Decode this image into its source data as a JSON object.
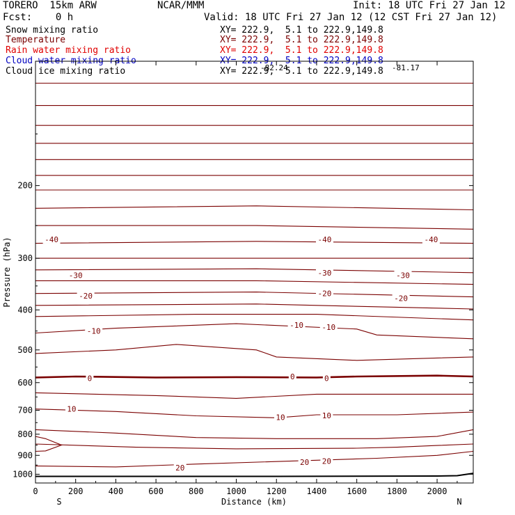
{
  "header": {
    "title": "TORERO  15km ARW",
    "center": "NCAR/MMM",
    "init": "Init: 18 UTC Fri 27 Jan 12",
    "fcst": "Fcst:    0 h",
    "valid": "Valid: 18 UTC Fri 27 Jan 12 (12 CST Fri 27 Jan 12)"
  },
  "fields": [
    {
      "name": "Snow mixing ratio",
      "xy": "XY= 222.9,  5.1 to 222.9,149.8",
      "color": "#000000"
    },
    {
      "name": "Temperature",
      "xy": "XY= 222.9,  5.1 to 222.9,149.8",
      "color": "#7a0000"
    },
    {
      "name": "Rain water mixing ratio",
      "xy": "XY= 222.9,  5.1 to 222.9,149.8",
      "color": "#e00000"
    },
    {
      "name": "Cloud water mixing ratio",
      "xy": "XY= 222.9,  5.1 to 222.9,149.8",
      "color": "#0000c0"
    },
    {
      "name": "Cloud ice mixing ratio",
      "xy": "XY= 222.9,  5.1 to 222.9,149.8",
      "color": "#000000"
    }
  ],
  "overlays": {
    "top_label_left": "-82.24",
    "top_label_right": "-81.17"
  },
  "chart_data": {
    "type": "line",
    "xlabel": "Distance (km)",
    "ylabel": "Pressure (hPa)",
    "xlim": [
      0,
      2180
    ],
    "ylim_hpa": [
      1050,
      100
    ],
    "y_scale": "log",
    "x_ticks": [
      0,
      200,
      400,
      600,
      800,
      1000,
      1200,
      1400,
      1600,
      1800,
      2000
    ],
    "y_ticks": [
      200,
      300,
      400,
      500,
      600,
      700,
      800,
      900,
      1000
    ],
    "x_end_labels": {
      "left": "S",
      "right": "N"
    },
    "contour_color": "#7a0000",
    "terrain_color": "#000000",
    "series": [
      {
        "x": [
          0,
          2180
        ],
        "y": [
          113,
          113
        ]
      },
      {
        "x": [
          0,
          2180
        ],
        "y": [
          128,
          128
        ]
      },
      {
        "x": [
          0,
          2180
        ],
        "y": [
          143,
          143
        ]
      },
      {
        "x": [
          0,
          2180
        ],
        "y": [
          158,
          158
        ]
      },
      {
        "x": [
          0,
          2180
        ],
        "y": [
          173,
          173
        ]
      },
      {
        "x": [
          0,
          2180
        ],
        "y": [
          189,
          189
        ]
      },
      {
        "x": [
          0,
          2180
        ],
        "y": [
          205,
          205
        ]
      },
      {
        "x": [
          0,
          1100,
          2180
        ],
        "y": [
          227,
          224,
          229
        ]
      },
      {
        "x": [
          0,
          1100,
          2180
        ],
        "y": [
          250,
          250,
          255
        ]
      },
      {
        "x": [
          0,
          1100,
          2180
        ],
        "y": [
          276,
          273,
          276
        ]
      },
      {
        "x": [
          0,
          2180
        ],
        "y": [
          300,
          300
        ]
      },
      {
        "x": [
          0,
          1100,
          2180
        ],
        "y": [
          320,
          318,
          325
        ]
      },
      {
        "x": [
          0,
          1100,
          2180
        ],
        "y": [
          340,
          340,
          347
        ]
      },
      {
        "x": [
          0,
          1100,
          2180
        ],
        "y": [
          365,
          362,
          372
        ]
      },
      {
        "x": [
          0,
          1100,
          2180
        ],
        "y": [
          390,
          387,
          398
        ]
      },
      {
        "x": [
          0,
          800,
          1400,
          2180
        ],
        "y": [
          415,
          410,
          410,
          423
        ]
      },
      {
        "x": [
          0,
          400,
          1000,
          1600,
          1700,
          2180
        ],
        "y": [
          455,
          443,
          432,
          445,
          460,
          470
        ]
      },
      {
        "x": [
          0,
          400,
          700,
          1100,
          1200,
          1600,
          2180
        ],
        "y": [
          510,
          500,
          485,
          500,
          520,
          530,
          520
        ]
      },
      {
        "x": [
          0,
          200,
          600,
          1000,
          1400,
          1600,
          2000,
          2180
        ],
        "y": [
          583,
          580,
          583,
          582,
          583,
          580,
          577,
          580
        ],
        "name": "0",
        "emphasis": true
      },
      {
        "x": [
          0,
          600,
          1000,
          1400,
          1800,
          2180
        ],
        "y": [
          635,
          645,
          655,
          640,
          640,
          640
        ]
      },
      {
        "x": [
          0,
          400,
          800,
          1200,
          1400,
          1800,
          2180
        ],
        "y": [
          695,
          705,
          722,
          730,
          718,
          718,
          707
        ]
      },
      {
        "x": [
          0,
          400,
          800,
          1200,
          1700,
          2000,
          2180
        ],
        "y": [
          780,
          795,
          815,
          820,
          820,
          810,
          780
        ]
      },
      {
        "x": [
          0,
          500,
          1000,
          1600,
          1800,
          2000,
          2180
        ],
        "y": [
          845,
          860,
          868,
          865,
          860,
          852,
          845
        ]
      },
      {
        "x": [
          0,
          400,
          800,
          1400,
          1700,
          2000,
          2180
        ],
        "y": [
          955,
          960,
          945,
          925,
          915,
          900,
          880
        ]
      },
      {
        "x": [
          0,
          50,
          130,
          50,
          0
        ],
        "y": [
          810,
          820,
          850,
          878,
          880
        ]
      }
    ],
    "terrain": {
      "x": [
        0,
        1200,
        2000,
        2100,
        2150,
        2180
      ],
      "y": [
        1012,
        1012,
        1010,
        1008,
        1000,
        995
      ]
    },
    "contour_labels": [
      {
        "text": "-40",
        "x": 80,
        "y": 270
      },
      {
        "text": "-40",
        "x": 1440,
        "y": 270
      },
      {
        "text": "-40",
        "x": 1970,
        "y": 270
      },
      {
        "text": "-30",
        "x": 200,
        "y": 330
      },
      {
        "text": "-30",
        "x": 1440,
        "y": 325
      },
      {
        "text": "-30",
        "x": 1830,
        "y": 330
      },
      {
        "text": "-20",
        "x": 250,
        "y": 370
      },
      {
        "text": "-20",
        "x": 1440,
        "y": 365
      },
      {
        "text": "-20",
        "x": 1820,
        "y": 375
      },
      {
        "text": "-10",
        "x": 290,
        "y": 450
      },
      {
        "text": "-10",
        "x": 1300,
        "y": 435
      },
      {
        "text": "-10",
        "x": 1460,
        "y": 440
      },
      {
        "text": "0",
        "x": 270,
        "y": 585
      },
      {
        "text": "0",
        "x": 1280,
        "y": 580
      },
      {
        "text": "0",
        "x": 1450,
        "y": 585
      },
      {
        "text": "10",
        "x": 180,
        "y": 695
      },
      {
        "text": "10",
        "x": 1220,
        "y": 728
      },
      {
        "text": "10",
        "x": 1450,
        "y": 720
      },
      {
        "text": "20",
        "x": 720,
        "y": 965
      },
      {
        "text": "20",
        "x": 1340,
        "y": 935
      },
      {
        "text": "20",
        "x": 1450,
        "y": 930
      }
    ]
  }
}
